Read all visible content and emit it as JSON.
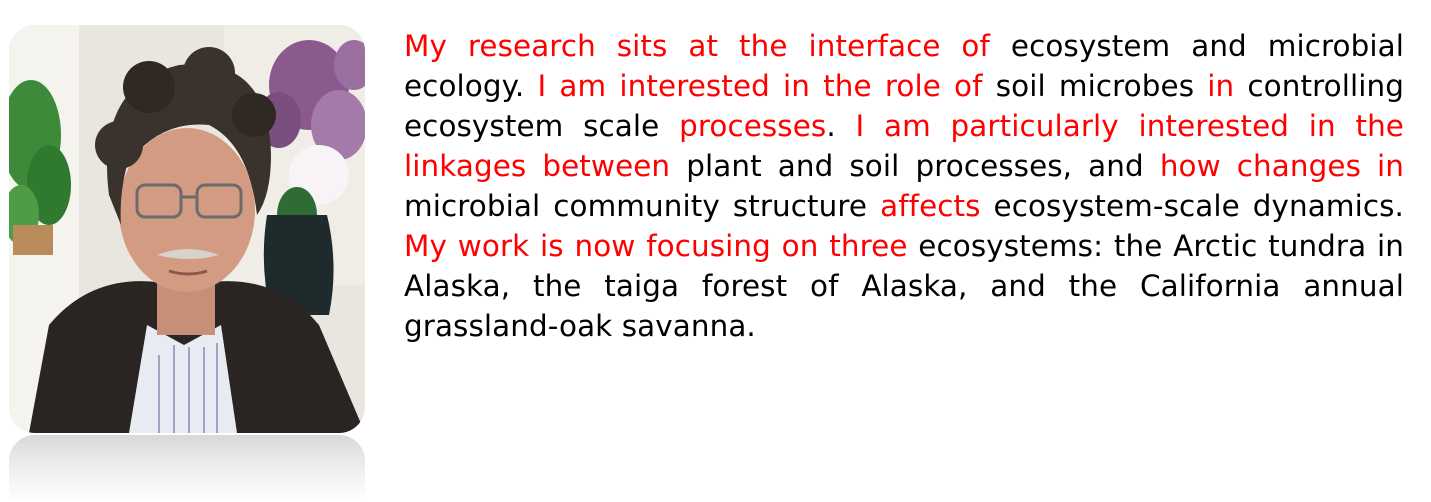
{
  "bio": {
    "segments": [
      {
        "text": "My research sits at the interface of",
        "color": "red"
      },
      {
        "text": " ecosystem and microbial ecology. ",
        "color": "black"
      },
      {
        "text": "I am interested in the role of",
        "color": "red"
      },
      {
        "text": " soil microbes ",
        "color": "black"
      },
      {
        "text": "in",
        "color": "red"
      },
      {
        "text": " controlling ecosystem scale ",
        "color": "black"
      },
      {
        "text": "processes",
        "color": "red"
      },
      {
        "text": ". ",
        "color": "black"
      },
      {
        "text": "I am particularly interested in the linkages between",
        "color": "red"
      },
      {
        "text": " plant and soil processes, and ",
        "color": "black"
      },
      {
        "text": "how changes in",
        "color": "red"
      },
      {
        "text": " microbial community structure ",
        "color": "black"
      },
      {
        "text": "affects",
        "color": "red"
      },
      {
        "text": " ecosystem-scale dynamics. ",
        "color": "black"
      },
      {
        "text": "My work is now focusing on three",
        "color": "red"
      },
      {
        "text": " ecosystems: the Arctic tundra in Alaska, the taiga forest of Alaska, and the California annual grassland-oak savanna.",
        "color": "black"
      }
    ]
  },
  "colors": {
    "highlight": "#ff0000",
    "body_text": "#000000",
    "background": "#ffffff"
  }
}
